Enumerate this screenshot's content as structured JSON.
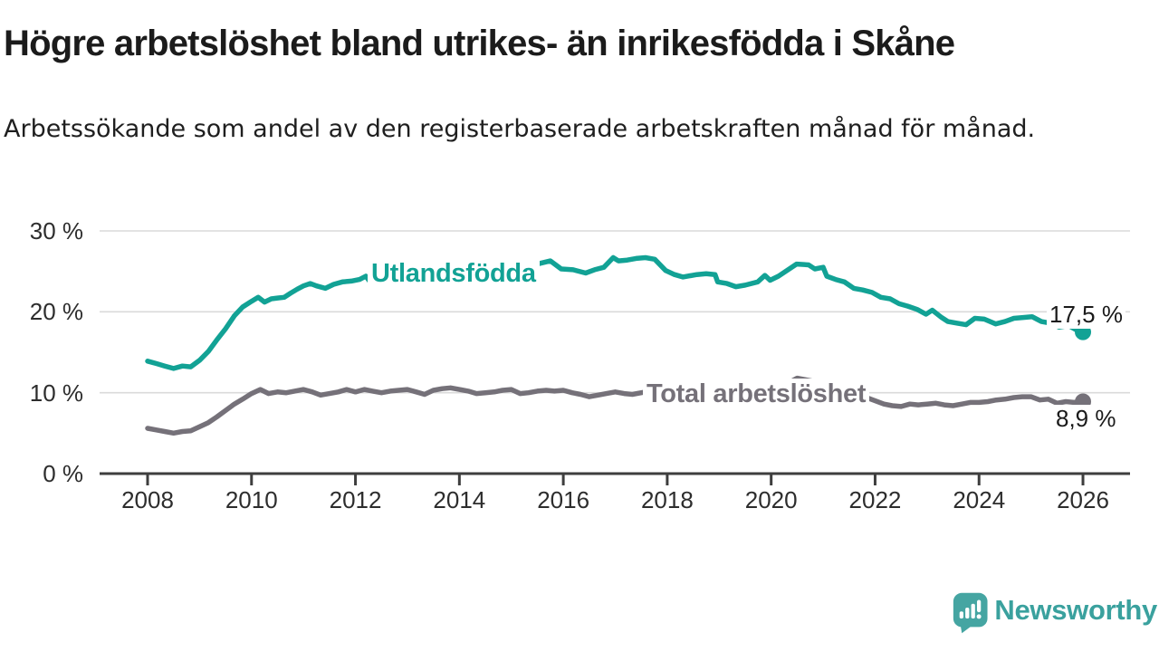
{
  "header": {
    "title": "Högre arbetslöshet bland utrikes- än inrikesfödda i Skåne",
    "subtitle": "Arbetssökande som andel av den registerbaserade arbetskraften månad för månad."
  },
  "chart_data": {
    "type": "line",
    "title": "Högre arbetslöshet bland utrikes- än inrikesfödda i Skåne",
    "subtitle": "Arbetssökande som andel av den registerbaserade arbetskraften månad för månad.",
    "grid": "horizontal-only",
    "legend_position": "inline-labels-on-lines",
    "x_axis": {
      "range": [
        2007.1,
        2026.9
      ],
      "tick_years": [
        2008,
        2010,
        2012,
        2014,
        2016,
        2018,
        2020,
        2022,
        2024,
        2026
      ],
      "tick_labels": [
        "2008",
        "2010",
        "2012",
        "2014",
        "2016",
        "2018",
        "2020",
        "2022",
        "2024",
        "2026"
      ]
    },
    "y_axis": {
      "range": [
        0,
        31
      ],
      "unit": "%",
      "gridline_values": [
        10,
        20,
        30
      ],
      "ticks": [
        {
          "value": 30,
          "label": "30 %"
        },
        {
          "value": 20,
          "label": "20 %"
        },
        {
          "value": 10,
          "label": "10 %"
        },
        {
          "value": 0,
          "label": "0 %"
        }
      ]
    },
    "series": [
      {
        "name": "Utlandsfödda",
        "color": "#12a295",
        "end_label": "17,5 %",
        "end_value": 17.5,
        "points": [
          [
            2008.0,
            13.9
          ],
          [
            2008.17,
            13.6
          ],
          [
            2008.33,
            13.3
          ],
          [
            2008.5,
            13.0
          ],
          [
            2008.67,
            13.3
          ],
          [
            2008.83,
            13.2
          ],
          [
            2009.0,
            14.0
          ],
          [
            2009.17,
            15.1
          ],
          [
            2009.33,
            16.5
          ],
          [
            2009.5,
            17.9
          ],
          [
            2009.67,
            19.5
          ],
          [
            2009.83,
            20.6
          ],
          [
            2010.0,
            21.3
          ],
          [
            2010.13,
            21.8
          ],
          [
            2010.25,
            21.2
          ],
          [
            2010.38,
            21.6
          ],
          [
            2010.5,
            21.7
          ],
          [
            2010.63,
            21.8
          ],
          [
            2010.75,
            22.3
          ],
          [
            2010.88,
            22.8
          ],
          [
            2011.0,
            23.2
          ],
          [
            2011.13,
            23.5
          ],
          [
            2011.25,
            23.2
          ],
          [
            2011.42,
            22.9
          ],
          [
            2011.58,
            23.4
          ],
          [
            2011.75,
            23.7
          ],
          [
            2011.92,
            23.8
          ],
          [
            2012.08,
            24.0
          ],
          [
            2012.2,
            24.4
          ],
          [
            2012.33,
            23.3
          ],
          [
            2012.5,
            23.4
          ],
          [
            2012.67,
            23.6
          ],
          [
            2012.83,
            23.8
          ],
          [
            2013.0,
            24.0
          ],
          [
            2013.25,
            24.2
          ],
          [
            2013.5,
            24.1
          ],
          [
            2013.75,
            24.4
          ],
          [
            2014.0,
            24.6
          ],
          [
            2014.25,
            24.8
          ],
          [
            2014.5,
            25.0
          ],
          [
            2014.75,
            25.1
          ],
          [
            2015.0,
            25.3
          ],
          [
            2015.25,
            25.6
          ],
          [
            2015.5,
            25.9
          ],
          [
            2015.75,
            26.3
          ],
          [
            2015.96,
            25.3
          ],
          [
            2016.19,
            25.2
          ],
          [
            2016.43,
            24.8
          ],
          [
            2016.6,
            25.2
          ],
          [
            2016.78,
            25.5
          ],
          [
            2016.96,
            26.7
          ],
          [
            2017.06,
            26.3
          ],
          [
            2017.23,
            26.4
          ],
          [
            2017.4,
            26.6
          ],
          [
            2017.58,
            26.7
          ],
          [
            2017.76,
            26.5
          ],
          [
            2017.97,
            25.1
          ],
          [
            2018.14,
            24.6
          ],
          [
            2018.3,
            24.3
          ],
          [
            2018.57,
            24.6
          ],
          [
            2018.75,
            24.7
          ],
          [
            2018.92,
            24.6
          ],
          [
            2018.97,
            23.7
          ],
          [
            2019.15,
            23.5
          ],
          [
            2019.32,
            23.1
          ],
          [
            2019.5,
            23.3
          ],
          [
            2019.74,
            23.7
          ],
          [
            2019.88,
            24.5
          ],
          [
            2019.98,
            23.9
          ],
          [
            2020.14,
            24.4
          ],
          [
            2020.49,
            25.9
          ],
          [
            2020.72,
            25.8
          ],
          [
            2020.84,
            25.3
          ],
          [
            2021.0,
            25.5
          ],
          [
            2021.07,
            24.4
          ],
          [
            2021.24,
            24.0
          ],
          [
            2021.41,
            23.7
          ],
          [
            2021.59,
            22.9
          ],
          [
            2021.76,
            22.7
          ],
          [
            2021.94,
            22.4
          ],
          [
            2022.11,
            21.8
          ],
          [
            2022.29,
            21.6
          ],
          [
            2022.46,
            21.0
          ],
          [
            2022.63,
            20.7
          ],
          [
            2022.81,
            20.3
          ],
          [
            2022.98,
            19.7
          ],
          [
            2023.1,
            20.2
          ],
          [
            2023.28,
            19.3
          ],
          [
            2023.4,
            18.8
          ],
          [
            2023.57,
            18.6
          ],
          [
            2023.75,
            18.4
          ],
          [
            2023.92,
            19.2
          ],
          [
            2024.1,
            19.1
          ],
          [
            2024.32,
            18.5
          ],
          [
            2024.5,
            18.8
          ],
          [
            2024.67,
            19.2
          ],
          [
            2024.85,
            19.3
          ],
          [
            2025.02,
            19.4
          ],
          [
            2025.2,
            18.8
          ],
          [
            2025.37,
            18.6
          ],
          [
            2025.54,
            18.1
          ],
          [
            2025.72,
            18.3
          ],
          [
            2025.89,
            17.7
          ],
          [
            2026.0,
            17.5
          ]
        ]
      },
      {
        "name": "Total arbetslöshet",
        "color": "#757179",
        "end_label": "8,9 %",
        "end_value": 8.9,
        "points": [
          [
            2008.0,
            5.6
          ],
          [
            2008.17,
            5.4
          ],
          [
            2008.33,
            5.2
          ],
          [
            2008.5,
            5.0
          ],
          [
            2008.67,
            5.2
          ],
          [
            2008.83,
            5.3
          ],
          [
            2009.0,
            5.8
          ],
          [
            2009.17,
            6.3
          ],
          [
            2009.33,
            7.0
          ],
          [
            2009.5,
            7.8
          ],
          [
            2009.67,
            8.6
          ],
          [
            2009.83,
            9.2
          ],
          [
            2010.0,
            9.9
          ],
          [
            2010.17,
            10.4
          ],
          [
            2010.33,
            9.9
          ],
          [
            2010.5,
            10.1
          ],
          [
            2010.67,
            10.0
          ],
          [
            2010.83,
            10.2
          ],
          [
            2011.0,
            10.4
          ],
          [
            2011.17,
            10.1
          ],
          [
            2011.33,
            9.7
          ],
          [
            2011.5,
            9.9
          ],
          [
            2011.67,
            10.1
          ],
          [
            2011.83,
            10.4
          ],
          [
            2012.0,
            10.1
          ],
          [
            2012.17,
            10.4
          ],
          [
            2012.33,
            10.2
          ],
          [
            2012.5,
            10.0
          ],
          [
            2012.67,
            10.2
          ],
          [
            2012.83,
            10.3
          ],
          [
            2013.0,
            10.4
          ],
          [
            2013.17,
            10.1
          ],
          [
            2013.33,
            9.8
          ],
          [
            2013.5,
            10.3
          ],
          [
            2013.67,
            10.5
          ],
          [
            2013.83,
            10.6
          ],
          [
            2014.0,
            10.4
          ],
          [
            2014.17,
            10.2
          ],
          [
            2014.33,
            9.9
          ],
          [
            2014.5,
            10.0
          ],
          [
            2014.67,
            10.1
          ],
          [
            2014.83,
            10.3
          ],
          [
            2015.0,
            10.4
          ],
          [
            2015.17,
            9.9
          ],
          [
            2015.33,
            10.0
          ],
          [
            2015.5,
            10.2
          ],
          [
            2015.67,
            10.3
          ],
          [
            2015.83,
            10.2
          ],
          [
            2016.0,
            10.3
          ],
          [
            2016.17,
            10.0
          ],
          [
            2016.33,
            9.8
          ],
          [
            2016.5,
            9.5
          ],
          [
            2016.67,
            9.7
          ],
          [
            2016.83,
            9.9
          ],
          [
            2017.0,
            10.1
          ],
          [
            2017.17,
            9.9
          ],
          [
            2017.33,
            9.8
          ],
          [
            2017.5,
            10.0
          ],
          [
            2017.67,
            10.2
          ],
          [
            2017.83,
            10.0
          ],
          [
            2018.0,
            9.9
          ],
          [
            2018.25,
            9.6
          ],
          [
            2018.5,
            9.4
          ],
          [
            2018.75,
            9.3
          ],
          [
            2019.0,
            9.4
          ],
          [
            2019.25,
            9.5
          ],
          [
            2019.5,
            9.6
          ],
          [
            2019.75,
            9.5
          ],
          [
            2020.0,
            9.7
          ],
          [
            2020.17,
            10.3
          ],
          [
            2020.33,
            11.2
          ],
          [
            2020.5,
            11.8
          ],
          [
            2020.67,
            11.6
          ],
          [
            2020.83,
            11.4
          ],
          [
            2021.0,
            11.2
          ],
          [
            2021.25,
            10.8
          ],
          [
            2021.5,
            10.2
          ],
          [
            2021.75,
            9.6
          ],
          [
            2022.0,
            9.0
          ],
          [
            2022.17,
            8.6
          ],
          [
            2022.33,
            8.4
          ],
          [
            2022.5,
            8.3
          ],
          [
            2022.67,
            8.6
          ],
          [
            2022.83,
            8.5
          ],
          [
            2023.0,
            8.6
          ],
          [
            2023.17,
            8.7
          ],
          [
            2023.33,
            8.5
          ],
          [
            2023.5,
            8.4
          ],
          [
            2023.67,
            8.6
          ],
          [
            2023.83,
            8.8
          ],
          [
            2024.0,
            8.8
          ],
          [
            2024.17,
            8.9
          ],
          [
            2024.33,
            9.1
          ],
          [
            2024.5,
            9.2
          ],
          [
            2024.67,
            9.4
          ],
          [
            2024.83,
            9.5
          ],
          [
            2025.0,
            9.5
          ],
          [
            2025.17,
            9.1
          ],
          [
            2025.33,
            9.2
          ],
          [
            2025.5,
            8.7
          ],
          [
            2025.67,
            8.9
          ],
          [
            2025.83,
            8.8
          ],
          [
            2026.0,
            8.9
          ]
        ]
      }
    ],
    "colors": {
      "utlandsfodda_line": "#12a295",
      "total_line": "#757179",
      "gridline": "#dadada",
      "axis": "#3e3e3e",
      "text": "#2d2d2d",
      "logo_teal": "#3aa19e"
    }
  },
  "footer": {
    "brand": "Newsworthy"
  }
}
